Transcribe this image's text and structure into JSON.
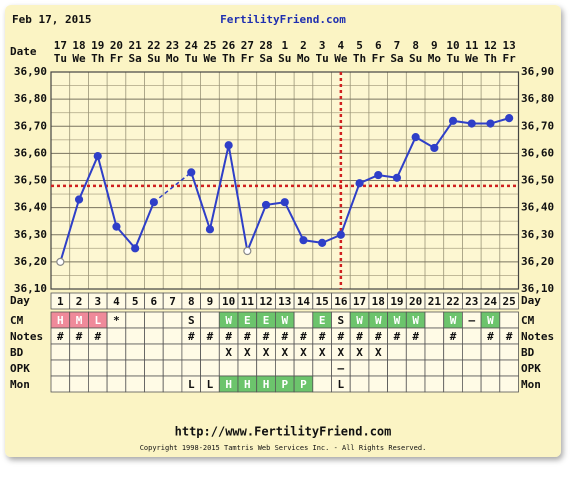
{
  "chart_data": {
    "type": "line",
    "date": "Feb 17, 2015",
    "title": "FertilityFriend.com",
    "date_label": "Date",
    "day_label": "Day",
    "categories": [
      "17",
      "18",
      "19",
      "20",
      "21",
      "22",
      "23",
      "24",
      "25",
      "26",
      "27",
      "28",
      "1",
      "2",
      "3",
      "4",
      "5",
      "6",
      "7",
      "8",
      "9",
      "10",
      "11",
      "12",
      "13"
    ],
    "weekdays": [
      "Tu",
      "We",
      "Th",
      "Fr",
      "Sa",
      "Su",
      "Mo",
      "Tu",
      "We",
      "Th",
      "Fr",
      "Sa",
      "Su",
      "Mo",
      "Tu",
      "We",
      "Th",
      "Fr",
      "Sa",
      "Su",
      "Mo",
      "Tu",
      "We",
      "Th",
      "Fr"
    ],
    "cycle_days": [
      1,
      2,
      3,
      4,
      5,
      6,
      7,
      8,
      9,
      10,
      11,
      12,
      13,
      14,
      15,
      16,
      17,
      18,
      19,
      20,
      21,
      22,
      23,
      24,
      25
    ],
    "series": [
      {
        "color": "#2f3fc8",
        "values": [
          36.2,
          36.43,
          36.59,
          36.33,
          36.25,
          36.42,
          null,
          36.53,
          36.32,
          36.63,
          36.24,
          36.41,
          36.42,
          36.28,
          36.27,
          36.3,
          36.49,
          36.52,
          36.51,
          36.66,
          36.62,
          36.72,
          36.71,
          36.71,
          36.73
        ]
      }
    ],
    "hollow_points": [
      1,
      11
    ],
    "coverline": 36.48,
    "ovulation_day": 16,
    "ylim": [
      36.1,
      36.9
    ],
    "yticks": [
      {
        "value": 36.9,
        "label": "36,90"
      },
      {
        "value": 36.8,
        "label": "36,80"
      },
      {
        "value": 36.7,
        "label": "36,70"
      },
      {
        "value": 36.6,
        "label": "36,60"
      },
      {
        "value": 36.5,
        "label": "36,50"
      },
      {
        "value": 36.4,
        "label": "36,40"
      },
      {
        "value": 36.3,
        "label": "36,30"
      },
      {
        "value": 36.2,
        "label": "36,20"
      },
      {
        "value": 36.1,
        "label": "36,10"
      }
    ],
    "table": [
      {
        "label": "CM",
        "cells": [
          "H",
          "M",
          "L",
          "*",
          null,
          null,
          null,
          "S",
          null,
          "W",
          "E",
          "E",
          "W",
          null,
          "E",
          "S",
          "W",
          "W",
          "W",
          "W",
          null,
          "W",
          "–",
          "W",
          null
        ],
        "fills": [
          "#ef8a9a",
          "#ef8a9a",
          "#ef8a9a",
          null,
          null,
          null,
          null,
          null,
          null,
          "#6cc46c",
          "#6cc46c",
          "#6cc46c",
          "#6cc46c",
          null,
          "#6cc46c",
          null,
          "#6cc46c",
          "#6cc46c",
          "#6cc46c",
          "#6cc46c",
          null,
          "#6cc46c",
          null,
          "#6cc46c",
          null
        ]
      },
      {
        "label": "Notes",
        "cells": [
          "#",
          "#",
          "#",
          null,
          null,
          null,
          null,
          "#",
          "#",
          "#",
          "#",
          "#",
          "#",
          "#",
          "#",
          "#",
          "#",
          "#",
          "#",
          "#",
          null,
          "#",
          null,
          "#",
          "#"
        ]
      },
      {
        "label": "BD",
        "cells": [
          null,
          null,
          null,
          null,
          null,
          null,
          null,
          null,
          null,
          "X",
          "X",
          "X",
          "X",
          "X",
          "X",
          "X",
          "X",
          "X",
          null,
          null,
          null,
          null,
          null,
          null,
          null
        ]
      },
      {
        "label": "OPK",
        "cells": [
          null,
          null,
          null,
          null,
          null,
          null,
          null,
          null,
          null,
          null,
          null,
          null,
          null,
          null,
          null,
          "–",
          null,
          null,
          null,
          null,
          null,
          null,
          null,
          null,
          null
        ]
      },
      {
        "label": "Mon",
        "cells": [
          null,
          null,
          null,
          null,
          null,
          null,
          null,
          "L",
          "L",
          "H",
          "H",
          "H",
          "P",
          "P",
          null,
          "L",
          null,
          null,
          null,
          null,
          null,
          null,
          null,
          null,
          null
        ],
        "fills": [
          null,
          null,
          null,
          null,
          null,
          null,
          null,
          null,
          null,
          "#6cc46c",
          "#6cc46c",
          "#6cc46c",
          "#6cc46c",
          "#6cc46c",
          null,
          null,
          null,
          null,
          null,
          null,
          null,
          null,
          null,
          null,
          null
        ]
      }
    ],
    "url": "http://www.FertilityFriend.com",
    "copyright": "Copyright 1998-2015 Tamtris Web Services Inc. - All Rights Reserved."
  }
}
